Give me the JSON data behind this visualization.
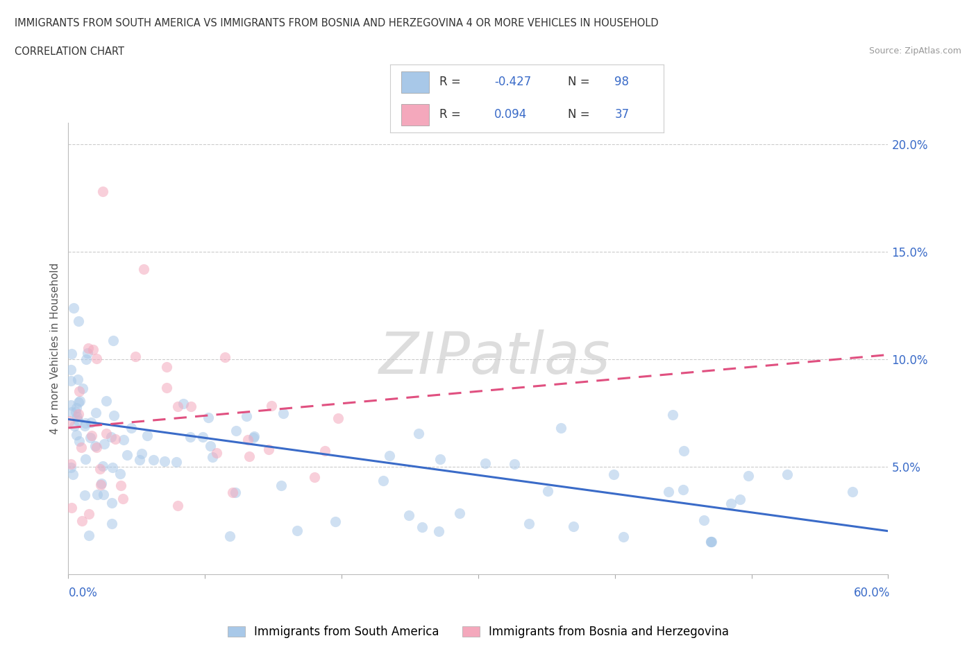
{
  "title_line1": "IMMIGRANTS FROM SOUTH AMERICA VS IMMIGRANTS FROM BOSNIA AND HERZEGOVINA 4 OR MORE VEHICLES IN HOUSEHOLD",
  "title_line2": "CORRELATION CHART",
  "source": "Source: ZipAtlas.com",
  "ylabel": "4 or more Vehicles in Household",
  "legend_blue_label": "Immigrants from South America",
  "legend_pink_label": "Immigrants from Bosnia and Herzegovina",
  "blue_color": "#a8c8e8",
  "pink_color": "#f4a8bc",
  "blue_line_color": "#3a6bc8",
  "pink_line_color": "#e05080",
  "watermark_color": "#d8d8d8",
  "r_n_color": "#3a6bc8",
  "r_label_color": "#333333",
  "ytick_color": "#3a6bc8",
  "xlim_low": 0.0,
  "xlim_high": 60.0,
  "ylim_low": 0.0,
  "ylim_high": 21.0,
  "blue_reg_x0": 0.0,
  "blue_reg_x1": 60.0,
  "blue_reg_y0": 7.2,
  "blue_reg_y1": 2.0,
  "pink_reg_x0": 0.0,
  "pink_reg_x1": 60.0,
  "pink_reg_y0": 6.8,
  "pink_reg_y1": 10.2,
  "dot_size": 120,
  "dot_alpha": 0.55,
  "dot_lw": 1.0
}
